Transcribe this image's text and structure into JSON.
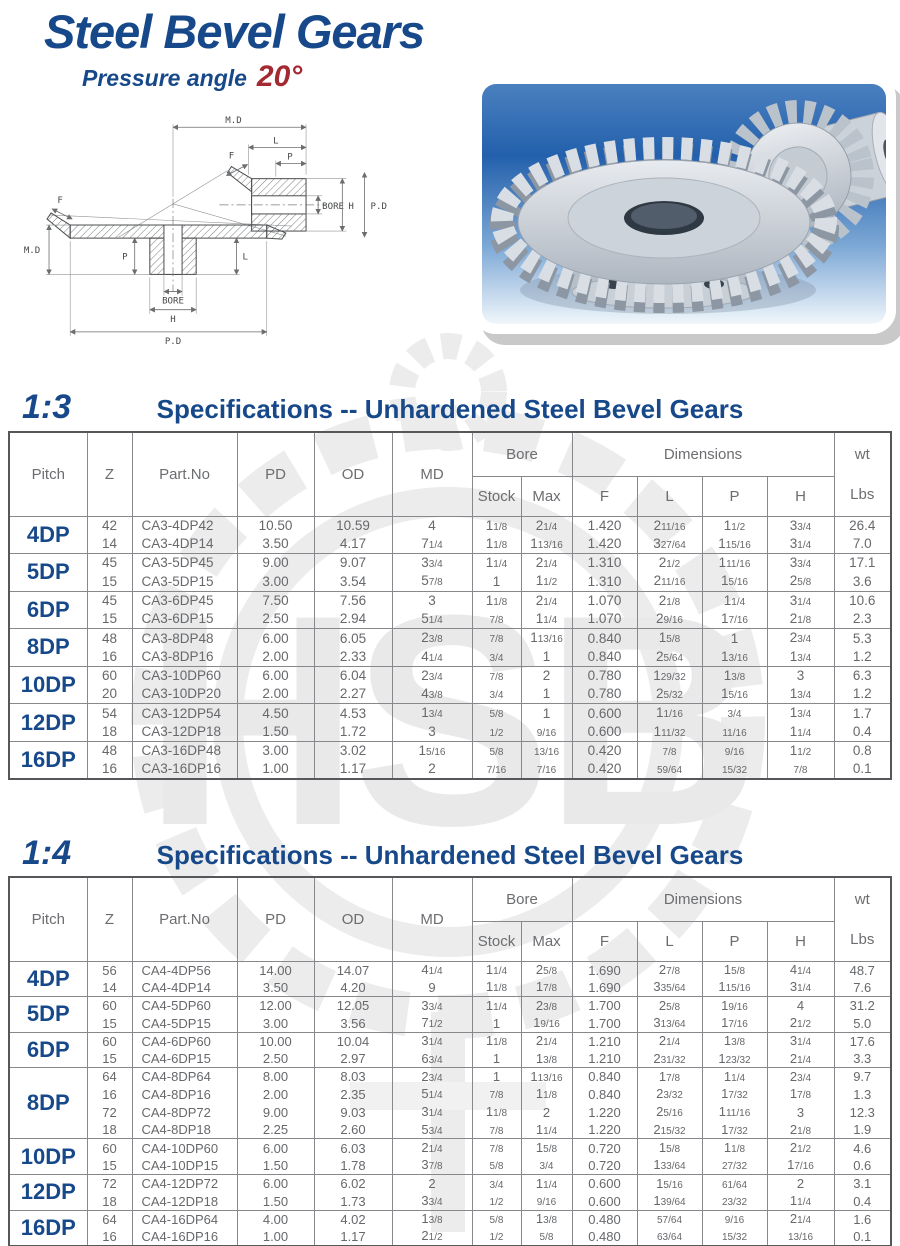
{
  "page": {
    "title": "Steel Bevel Gears",
    "subtitle": "Pressure angle",
    "pressure_angle": "20°",
    "watermark_text": "HSB",
    "colors": {
      "navy": "#17498a",
      "red": "#a32a30",
      "table_text": "#66686b",
      "watermark": "#e9e9e9"
    }
  },
  "diagram": {
    "labels": {
      "md": "M.D",
      "l": "L",
      "p": "P",
      "f": "F",
      "bore": "BORE",
      "h": "H",
      "pd": "P.D"
    }
  },
  "table_headers": {
    "pitch": "Pitch",
    "z": "Z",
    "part_no": "Part.No",
    "pd": "PD",
    "od": "OD",
    "md": "MD",
    "bore": "Bore",
    "stock": "Stock",
    "max": "Max",
    "dimensions": "Dimensions",
    "f": "F",
    "l": "L",
    "p": "P",
    "h": "H",
    "wt": "wt",
    "lbs": "Lbs"
  },
  "sections": [
    {
      "ratio": "1:3",
      "heading": "Specifications -- Unhardened Steel Bevel Gears",
      "groups": [
        {
          "pitch": "4DP",
          "rows": [
            {
              "z": "42",
              "part_no": "CA3-4DP42",
              "pd": "10.50",
              "od": "10.59",
              "md": "4",
              "stock": "1 1/8",
              "max": "2 1/4",
              "f": "1.420",
              "l": "2 11/16",
              "p": "1 1/2",
              "h": "3 3/4",
              "wt": "26.4"
            },
            {
              "z": "14",
              "part_no": "CA3-4DP14",
              "pd": "3.50",
              "od": "4.17",
              "md": "7 1/4",
              "stock": "1 1/8",
              "max": "1 13/16",
              "f": "1.420",
              "l": "3 27/64",
              "p": "1 15/16",
              "h": "3 1/4",
              "wt": "7.0"
            }
          ]
        },
        {
          "pitch": "5DP",
          "rows": [
            {
              "z": "45",
              "part_no": "CA3-5DP45",
              "pd": "9.00",
              "od": "9.07",
              "md": "3 3/4",
              "stock": "1 1/4",
              "max": "2 1/4",
              "f": "1.310",
              "l": "2 1/2",
              "p": "1 11/16",
              "h": "3 3/4",
              "wt": "17.1"
            },
            {
              "z": "15",
              "part_no": "CA3-5DP15",
              "pd": "3.00",
              "od": "3.54",
              "md": "5 7/8",
              "stock": "1",
              "max": "1 1/2",
              "f": "1.310",
              "l": "2 11/16",
              "p": "1 5/16",
              "h": "2 5/8",
              "wt": "3.6"
            }
          ]
        },
        {
          "pitch": "6DP",
          "rows": [
            {
              "z": "45",
              "part_no": "CA3-6DP45",
              "pd": "7.50",
              "od": "7.56",
              "md": "3",
              "stock": "1 1/8",
              "max": "2 1/4",
              "f": "1.070",
              "l": "2 1/8",
              "p": "1 1/4",
              "h": "3 1/4",
              "wt": "10.6"
            },
            {
              "z": "15",
              "part_no": "CA3-6DP15",
              "pd": "2.50",
              "od": "2.94",
              "md": "5 1/4",
              "stock": "7/8",
              "max": "1 1/4",
              "f": "1.070",
              "l": "2 9/16",
              "p": "1 7/16",
              "h": "2 1/8",
              "wt": "2.3"
            }
          ]
        },
        {
          "pitch": "8DP",
          "rows": [
            {
              "z": "48",
              "part_no": "CA3-8DP48",
              "pd": "6.00",
              "od": "6.05",
              "md": "2 3/8",
              "stock": "7/8",
              "max": "1 13/16",
              "f": "0.840",
              "l": "1 5/8",
              "p": "1",
              "h": "2 3/4",
              "wt": "5.3"
            },
            {
              "z": "16",
              "part_no": "CA3-8DP16",
              "pd": "2.00",
              "od": "2.33",
              "md": "4 1/4",
              "stock": "3/4",
              "max": "1",
              "f": "0.840",
              "l": "2 5/64",
              "p": "1 3/16",
              "h": "1 3/4",
              "wt": "1.2"
            }
          ]
        },
        {
          "pitch": "10DP",
          "rows": [
            {
              "z": "60",
              "part_no": "CA3-10DP60",
              "pd": "6.00",
              "od": "6.04",
              "md": "2 3/4",
              "stock": "7/8",
              "max": "2",
              "f": "0.780",
              "l": "1 29/32",
              "p": "1 3/8",
              "h": "3",
              "wt": "6.3"
            },
            {
              "z": "20",
              "part_no": "CA3-10DP20",
              "pd": "2.00",
              "od": "2.27",
              "md": "4 3/8",
              "stock": "3/4",
              "max": "1",
              "f": "0.780",
              "l": "2 5/32",
              "p": "1 5/16",
              "h": "1 3/4",
              "wt": "1.2"
            }
          ]
        },
        {
          "pitch": "12DP",
          "rows": [
            {
              "z": "54",
              "part_no": "CA3-12DP54",
              "pd": "4.50",
              "od": "4.53",
              "md": "1 3/4",
              "stock": "5/8",
              "max": "1",
              "f": "0.600",
              "l": "1 1/16",
              "p": "3/4",
              "h": "1 3/4",
              "wt": "1.7"
            },
            {
              "z": "18",
              "part_no": "CA3-12DP18",
              "pd": "1.50",
              "od": "1.72",
              "md": "3",
              "stock": "1/2",
              "max": "9/16",
              "f": "0.600",
              "l": "1 11/32",
              "p": "11/16",
              "h": "1 1/4",
              "wt": "0.4"
            }
          ]
        },
        {
          "pitch": "16DP",
          "rows": [
            {
              "z": "48",
              "part_no": "CA3-16DP48",
              "pd": "3.00",
              "od": "3.02",
              "md": "1 5/16",
              "stock": "5/8",
              "max": "13/16",
              "f": "0.420",
              "l": "7/8",
              "p": "9/16",
              "h": "1 1/2",
              "wt": "0.8"
            },
            {
              "z": "16",
              "part_no": "CA3-16DP16",
              "pd": "1.00",
              "od": "1.17",
              "md": "2",
              "stock": "7/16",
              "max": "7/16",
              "f": "0.420",
              "l": "59/64",
              "p": "15/32",
              "h": "7/8",
              "wt": "0.1"
            }
          ]
        }
      ]
    },
    {
      "ratio": "1:4",
      "heading": "Specifications -- Unhardened Steel Bevel Gears",
      "groups": [
        {
          "pitch": "4DP",
          "rows": [
            {
              "z": "56",
              "part_no": "CA4-4DP56",
              "pd": "14.00",
              "od": "14.07",
              "md": "4 1/4",
              "stock": "1 1/4",
              "max": "2 5/8",
              "f": "1.690",
              "l": "2 7/8",
              "p": "1 5/8",
              "h": "4 1/4",
              "wt": "48.7"
            },
            {
              "z": "14",
              "part_no": "CA4-4DP14",
              "pd": "3.50",
              "od": "4.20",
              "md": "9",
              "stock": "1 1/8",
              "max": "1 7/8",
              "f": "1.690",
              "l": "3 35/64",
              "p": "1 15/16",
              "h": "3 1/4",
              "wt": "7.6"
            }
          ]
        },
        {
          "pitch": "5DP",
          "rows": [
            {
              "z": "60",
              "part_no": "CA4-5DP60",
              "pd": "12.00",
              "od": "12.05",
              "md": "3 3/4",
              "stock": "1 1/4",
              "max": "2 3/8",
              "f": "1.700",
              "l": "2 5/8",
              "p": "1 9/16",
              "h": "4",
              "wt": "31.2"
            },
            {
              "z": "15",
              "part_no": "CA4-5DP15",
              "pd": "3.00",
              "od": "3.56",
              "md": "7 1/2",
              "stock": "1",
              "max": "1 9/16",
              "f": "1.700",
              "l": "3 13/64",
              "p": "1 7/16",
              "h": "2 1/2",
              "wt": "5.0"
            }
          ]
        },
        {
          "pitch": "6DP",
          "rows": [
            {
              "z": "60",
              "part_no": "CA4-6DP60",
              "pd": "10.00",
              "od": "10.04",
              "md": "3 1/4",
              "stock": "1 1/8",
              "max": "2 1/4",
              "f": "1.210",
              "l": "2 1/4",
              "p": "1 3/8",
              "h": "3 1/4",
              "wt": "17.6"
            },
            {
              "z": "15",
              "part_no": "CA4-6DP15",
              "pd": "2.50",
              "od": "2.97",
              "md": "6 3/4",
              "stock": "1",
              "max": "1 3/8",
              "f": "1.210",
              "l": "2 31/32",
              "p": "1 23/32",
              "h": "2 1/4",
              "wt": "3.3"
            }
          ]
        },
        {
          "pitch": "8DP",
          "rows": [
            {
              "z": "64",
              "part_no": "CA4-8DP64",
              "pd": "8.00",
              "od": "8.03",
              "md": "2 3/4",
              "stock": "1",
              "max": "1 13/16",
              "f": "0.840",
              "l": "1 7/8",
              "p": "1 1/4",
              "h": "2 3/4",
              "wt": "9.7"
            },
            {
              "z": "16",
              "part_no": "CA4-8DP16",
              "pd": "2.00",
              "od": "2.35",
              "md": "5 1/4",
              "stock": "7/8",
              "max": "1 1/8",
              "f": "0.840",
              "l": "2 3/32",
              "p": "1 7/32",
              "h": "1 7/8",
              "wt": "1.3"
            },
            {
              "z": "72",
              "part_no": "CA4-8DP72",
              "pd": "9.00",
              "od": "9.03",
              "md": "3 1/4",
              "stock": "1 1/8",
              "max": "2",
              "f": "1.220",
              "l": "2 5/16",
              "p": "1 11/16",
              "h": "3",
              "wt": "12.3"
            },
            {
              "z": "18",
              "part_no": "CA4-8DP18",
              "pd": "2.25",
              "od": "2.60",
              "md": "5 3/4",
              "stock": "7/8",
              "max": "1 1/4",
              "f": "1.220",
              "l": "2 15/32",
              "p": "1 7/32",
              "h": "2 1/8",
              "wt": "1.9"
            }
          ]
        },
        {
          "pitch": "10DP",
          "rows": [
            {
              "z": "60",
              "part_no": "CA4-10DP60",
              "pd": "6.00",
              "od": "6.03",
              "md": "2 1/4",
              "stock": "7/8",
              "max": "1 5/8",
              "f": "0.720",
              "l": "1 5/8",
              "p": "1 1/8",
              "h": "2 1/2",
              "wt": "4.6"
            },
            {
              "z": "15",
              "part_no": "CA4-10DP15",
              "pd": "1.50",
              "od": "1.78",
              "md": "3 7/8",
              "stock": "5/8",
              "max": "3/4",
              "f": "0.720",
              "l": "1 33/64",
              "p": "27/32",
              "h": "1 7/16",
              "wt": "0.6"
            }
          ]
        },
        {
          "pitch": "12DP",
          "rows": [
            {
              "z": "72",
              "part_no": "CA4-12DP72",
              "pd": "6.00",
              "od": "6.02",
              "md": "2",
              "stock": "3/4",
              "max": "1 1/4",
              "f": "0.600",
              "l": "1 5/16",
              "p": "61/64",
              "h": "2",
              "wt": "3.1"
            },
            {
              "z": "18",
              "part_no": "CA4-12DP18",
              "pd": "1.50",
              "od": "1.73",
              "md": "3 3/4",
              "stock": "1/2",
              "max": "9/16",
              "f": "0.600",
              "l": "1 39/64",
              "p": "23/32",
              "h": "1 1/4",
              "wt": "0.4"
            }
          ]
        },
        {
          "pitch": "16DP",
          "rows": [
            {
              "z": "64",
              "part_no": "CA4-16DP64",
              "pd": "4.00",
              "od": "4.02",
              "md": "1 3/8",
              "stock": "5/8",
              "max": "1 3/8",
              "f": "0.480",
              "l": "57/64",
              "p": "9/16",
              "h": "2 1/4",
              "wt": "1.6"
            },
            {
              "z": "16",
              "part_no": "CA4-16DP16",
              "pd": "1.00",
              "od": "1.17",
              "md": "2 1/2",
              "stock": "1/2",
              "max": "5/8",
              "f": "0.480",
              "l": "63/64",
              "p": "15/32",
              "h": "13/16",
              "wt": "0.1"
            }
          ]
        }
      ]
    }
  ]
}
